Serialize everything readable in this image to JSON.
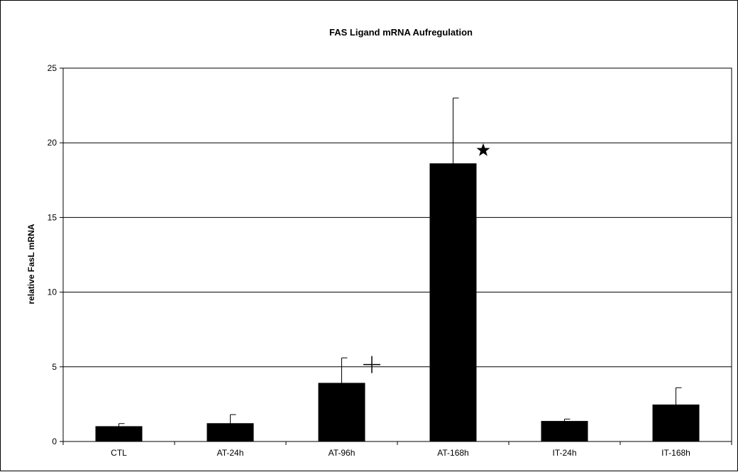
{
  "chart_data": {
    "type": "bar",
    "title": "FAS Ligand mRNA Aufregulation",
    "xlabel": "",
    "ylabel": "relative FasL mRNA",
    "categories": [
      "CTL",
      "AT-24h",
      "AT-96h",
      "AT-168h",
      "IT-24h",
      "IT-168h"
    ],
    "values": [
      1.0,
      1.2,
      3.9,
      18.6,
      1.35,
      2.45
    ],
    "error_upper": [
      1.2,
      1.8,
      5.6,
      23.0,
      1.5,
      3.6
    ],
    "ylim": [
      0,
      25
    ],
    "yticks": [
      0,
      5,
      10,
      15,
      20,
      25
    ],
    "grid": true,
    "bar_color": "#000000",
    "annotations": [
      {
        "category": "AT-96h",
        "symbol": "plus",
        "value": 5.15
      },
      {
        "category": "AT-168h",
        "symbol": "star",
        "value": 19.5
      }
    ]
  }
}
